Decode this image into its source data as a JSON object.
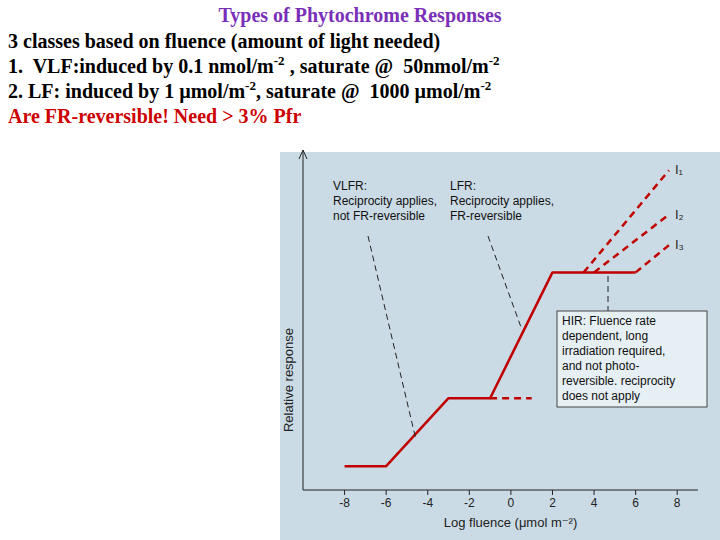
{
  "slide": {
    "title": "Types of Phytochrome Responses",
    "lines": [
      [
        {
          "text": "3 classes based on fluence (amount of light needed)"
        }
      ],
      [
        {
          "text": "1.  VLF:induced by 0.1 nmol/m"
        },
        {
          "text": "-2",
          "sup": true
        },
        {
          "text": " , saturate @  50nmol/m"
        },
        {
          "text": "-2",
          "sup": true
        }
      ],
      [
        {
          "text": "2. LF: induced by 1 µmol/m"
        },
        {
          "text": "-2",
          "sup": true
        },
        {
          "text": ", saturate @  1000 µmol/m"
        },
        {
          "text": "-2",
          "sup": true
        }
      ]
    ],
    "note": [
      {
        "text": "Are FR-reversible! Need > 3% Pfr"
      }
    ]
  },
  "chart_data": {
    "type": "line",
    "x_label": "Log fluence (μmol m⁻²)",
    "y_label": "Relative response",
    "xlim": [
      -10,
      9
    ],
    "xticks": [
      -8,
      -6,
      -4,
      -2,
      0,
      2,
      4,
      6,
      8
    ],
    "ylim": [
      0,
      10
    ],
    "tick_labels": "x",
    "series": [
      {
        "color": "#c00000",
        "line_style": "solid",
        "x": [
          -8,
          -6,
          -3,
          -1,
          2,
          6
        ],
        "values": [
          0.7,
          0.7,
          2.7,
          2.7,
          6.4,
          6.4
        ]
      },
      {
        "color": "#c00000",
        "line_style": "dashed",
        "x": [
          -1,
          1
        ],
        "values": [
          2.7,
          2.7
        ]
      },
      {
        "name": "I₁",
        "color": "#c00000",
        "line_style": "dashed",
        "x": [
          3.5,
          7.6
        ],
        "values": [
          6.4,
          9.4
        ]
      },
      {
        "name": "I₂",
        "color": "#c00000",
        "line_style": "dashed",
        "x": [
          4,
          7.6
        ],
        "values": [
          6.4,
          8.1
        ]
      },
      {
        "name": "I₃",
        "color": "#c00000",
        "line_style": "dashed",
        "x": [
          6,
          7.6
        ],
        "values": [
          6.4,
          7.2
        ]
      }
    ],
    "annotations": [
      {
        "lines": [
          "VLFR:",
          "Reciprocity applies,",
          "not FR-reversible"
        ]
      },
      {
        "lines": [
          "LFR:",
          "Reciprocity applies,",
          "FR-reversible"
        ]
      },
      {
        "lines": [
          "HIR: Fluence rate",
          "dependent, long",
          "irradiation required,",
          "and not photo-",
          "reversible. reciprocity",
          "does not apply"
        ]
      }
    ]
  }
}
